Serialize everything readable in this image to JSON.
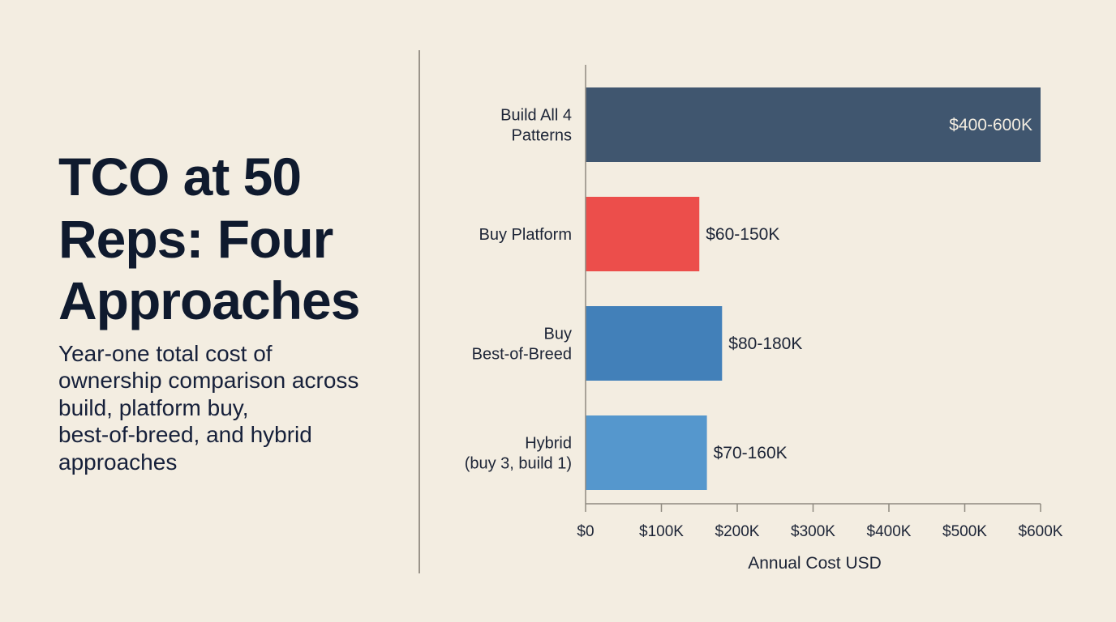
{
  "header": {
    "title": "TCO at 50\nReps: Four\nApproaches",
    "subtitle": "Year-one total cost of\nownership comparison across\nbuild, platform buy,\nbest-of-breed, and hybrid\napproaches"
  },
  "chart_data": {
    "type": "bar",
    "orientation": "horizontal",
    "categories": [
      [
        "Build All 4",
        "Patterns"
      ],
      [
        "Buy Platform"
      ],
      [
        "Buy",
        "Best-of-Breed"
      ],
      [
        "Hybrid",
        "(buy 3, build 1)"
      ]
    ],
    "values": [
      600000,
      150000,
      180000,
      160000
    ],
    "value_labels": [
      "$400-600K",
      "$60-150K",
      "$80-180K",
      "$70-160K"
    ],
    "colors": [
      "#40566f",
      "#ec4e4b",
      "#4280b9",
      "#5597cd"
    ],
    "xlabel": "Annual Cost USD",
    "ylabel": "",
    "xlim": [
      0,
      600000
    ],
    "xticks": [
      0,
      100000,
      200000,
      300000,
      400000,
      500000,
      600000
    ],
    "xtick_labels": [
      "$0",
      "$100K",
      "$200K",
      "$300K",
      "$400K",
      "$500K",
      "$600K"
    ],
    "grid": false,
    "legend": "none"
  }
}
